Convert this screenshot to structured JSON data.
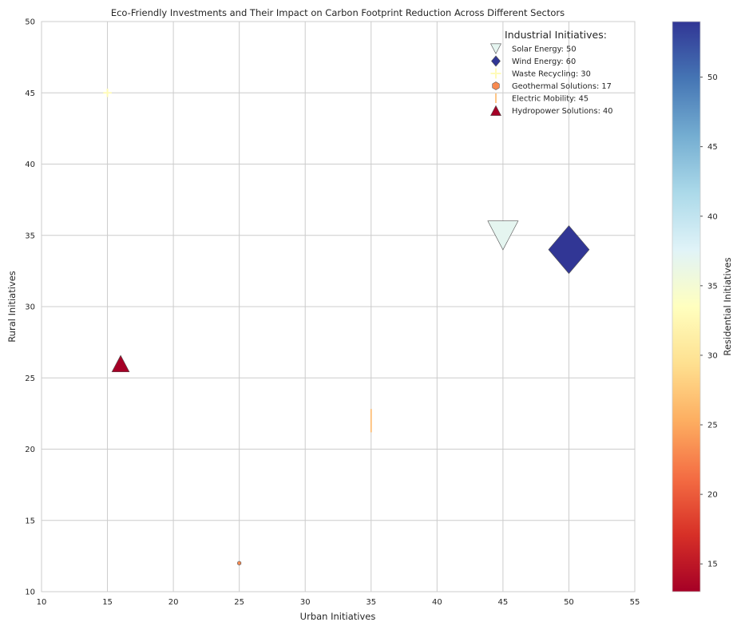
{
  "chart_data": {
    "type": "scatter",
    "title": "Eco-Friendly Investments and Their Impact on Carbon Footprint Reduction Across Different Sectors",
    "xlabel": "Urban Initiatives",
    "ylabel": "Rural Initiatives",
    "xlim": [
      10,
      55
    ],
    "ylim": [
      10,
      50
    ],
    "xticks": [
      "10",
      "15",
      "20",
      "25",
      "30",
      "35",
      "40",
      "45",
      "50",
      "55"
    ],
    "yticks": [
      "10",
      "15",
      "20",
      "25",
      "30",
      "35",
      "40",
      "45",
      "50"
    ],
    "grid": true,
    "legend": {
      "title": "Industrial Initiatives:",
      "placement": "top-right",
      "entries": [
        "Solar Energy: 50",
        "Wind Energy: 60",
        "Waste Recycling: 30",
        "Geothermal Solutions: 17",
        "Electric Mobility: 45",
        "Hydropower Solutions: 40"
      ]
    },
    "colorbar": {
      "label": "Residential Initiatives",
      "colormap": "RdYlBu",
      "range": [
        13,
        54
      ],
      "ticks": [
        "15",
        "20",
        "25",
        "30",
        "35",
        "40",
        "45",
        "50"
      ]
    },
    "points": [
      {
        "label": "Solar Energy",
        "x": 45,
        "y": 35,
        "industrial": 50,
        "residential": 37,
        "marker": "triangle-down"
      },
      {
        "label": "Wind Energy",
        "x": 50,
        "y": 34,
        "industrial": 60,
        "residential": 54,
        "marker": "diamond"
      },
      {
        "label": "Waste Recycling",
        "x": 15,
        "y": 45,
        "industrial": 30,
        "residential": 33,
        "marker": "plus"
      },
      {
        "label": "Geothermal Solutions",
        "x": 25,
        "y": 12,
        "industrial": 17,
        "residential": 23,
        "marker": "hexagon"
      },
      {
        "label": "Electric Mobility",
        "x": 35,
        "y": 22,
        "industrial": 45,
        "residential": 26,
        "marker": "vline"
      },
      {
        "label": "Hydropower Solutions",
        "x": 16,
        "y": 26,
        "industrial": 40,
        "residential": 13,
        "marker": "triangle-up"
      }
    ]
  },
  "colors": {
    "grid": "#cccccc",
    "axes_border": "#cccccc",
    "marker_edge": "#555555"
  }
}
